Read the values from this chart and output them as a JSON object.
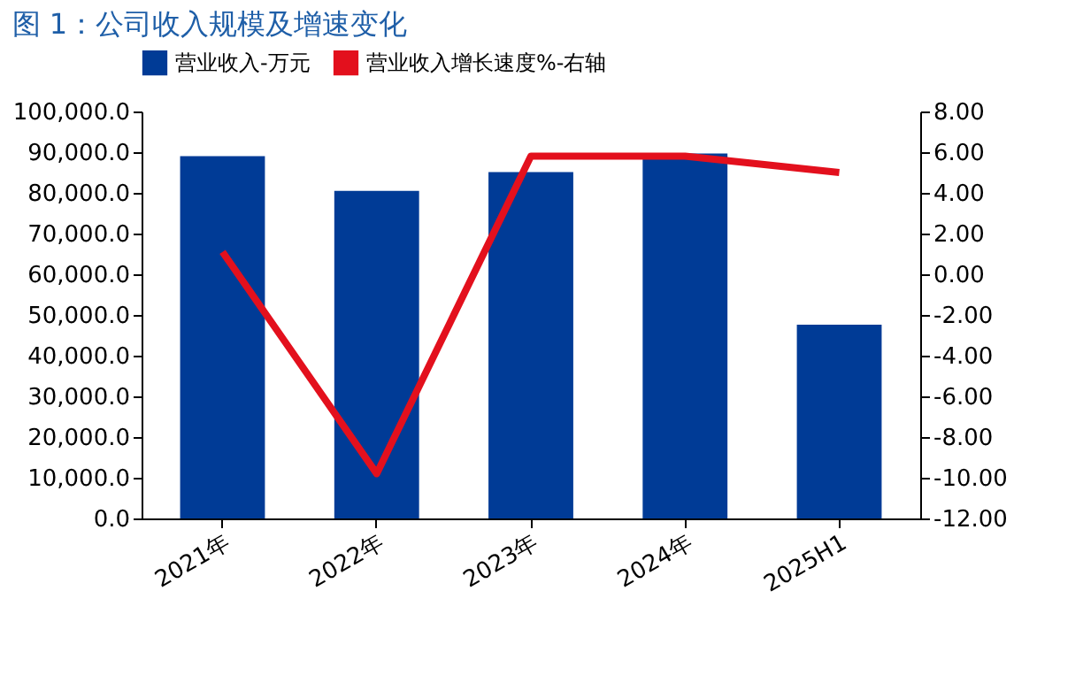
{
  "chart_data": {
    "type": "bar",
    "title": "图 1：公司收入规模及增速变化",
    "categories": [
      "2021年",
      "2022年",
      "2023年",
      "2024年",
      "2025H1"
    ],
    "series": [
      {
        "name": "营业收入-万元",
        "color": "#003b96",
        "values": [
          89000,
          80500,
          85100,
          89700,
          47600
        ]
      },
      {
        "name": "营业收入增长速度%-右轴",
        "type": "line",
        "axis": "y2",
        "color": "#e3101d",
        "values": [
          1.1,
          -9.8,
          5.8,
          5.8,
          5.0
        ]
      }
    ],
    "ylim": [
      0,
      100000
    ],
    "yticks": [
      {
        "value": 0,
        "label": "0.0"
      },
      {
        "value": 10000,
        "label": "10,000.0"
      },
      {
        "value": 20000,
        "label": "20,000.0"
      },
      {
        "value": 30000,
        "label": "30,000.0"
      },
      {
        "value": 40000,
        "label": "40,000.0"
      },
      {
        "value": 50000,
        "label": "50,000.0"
      },
      {
        "value": 60000,
        "label": "60,000.0"
      },
      {
        "value": 70000,
        "label": "70,000.0"
      },
      {
        "value": 80000,
        "label": "80,000.0"
      },
      {
        "value": 90000,
        "label": "90,000.0"
      },
      {
        "value": 100000,
        "label": "100,000.0"
      }
    ],
    "y2lim": [
      -12,
      8
    ],
    "y2ticks": [
      {
        "value": -12,
        "label": "-12.00"
      },
      {
        "value": -10,
        "label": "-10.00"
      },
      {
        "value": -8,
        "label": "-8.00"
      },
      {
        "value": -6,
        "label": "-6.00"
      },
      {
        "value": -4,
        "label": "-4.00"
      },
      {
        "value": -2,
        "label": "-2.00"
      },
      {
        "value": 0,
        "label": "0.00"
      },
      {
        "value": 2,
        "label": "2.00"
      },
      {
        "value": 4,
        "label": "4.00"
      },
      {
        "value": 6,
        "label": "6.00"
      },
      {
        "value": 8,
        "label": "8.00"
      }
    ],
    "legend": "top",
    "grid": false
  }
}
